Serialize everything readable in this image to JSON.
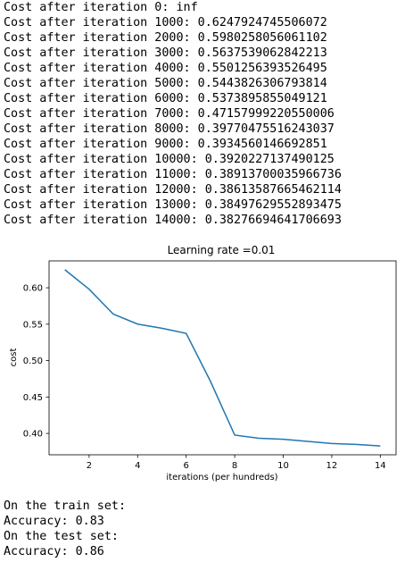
{
  "log_lines": [
    "Cost after iteration 0: inf",
    "Cost after iteration 1000: 0.6247924745506072",
    "Cost after iteration 2000: 0.5980258056061102",
    "Cost after iteration 3000: 0.5637539062842213",
    "Cost after iteration 4000: 0.5501256393526495",
    "Cost after iteration 5000: 0.5443826306793814",
    "Cost after iteration 6000: 0.5373895855049121",
    "Cost after iteration 7000: 0.47157999220550006",
    "Cost after iteration 8000: 0.39770475516243037",
    "Cost after iteration 9000: 0.3934560146692851",
    "Cost after iteration 10000: 0.3920227137490125",
    "Cost after iteration 11000: 0.38913700035966736",
    "Cost after iteration 12000: 0.38613587665462114",
    "Cost after iteration 13000: 0.38497629552893475",
    "Cost after iteration 14000: 0.38276694641706693"
  ],
  "results_lines": [
    "On the train set:",
    "Accuracy: 0.83",
    "On the test set:",
    "Accuracy: 0.86"
  ],
  "chart_data": {
    "type": "line",
    "title": "Learning rate =0.01",
    "xlabel": "iterations (per hundreds)",
    "ylabel": "cost",
    "x": [
      1,
      2,
      3,
      4,
      5,
      6,
      7,
      8,
      9,
      10,
      11,
      12,
      13,
      14
    ],
    "series": [
      {
        "values": [
          0.6247924745506072,
          0.5980258056061102,
          0.5637539062842213,
          0.5501256393526495,
          0.5443826306793814,
          0.5373895855049121,
          0.47157999220550006,
          0.39770475516243037,
          0.3934560146692851,
          0.3920227137490125,
          0.38913700035966736,
          0.3861358766546211,
          0.38497629552893475,
          0.38276694641706693
        ],
        "color": "#1f77b4"
      }
    ],
    "xlim": [
      0.35,
      14.65
    ],
    "ylim": [
      0.3707,
      0.6369
    ],
    "xticks": [
      2,
      4,
      6,
      8,
      10,
      12,
      14
    ],
    "yticks": [
      0.4,
      0.45,
      0.5,
      0.55,
      0.6
    ],
    "xtick_labels": [
      "2",
      "4",
      "6",
      "8",
      "10",
      "12",
      "14"
    ],
    "ytick_labels": [
      "0.40",
      "0.45",
      "0.50",
      "0.55",
      "0.60"
    ],
    "grid": false
  }
}
